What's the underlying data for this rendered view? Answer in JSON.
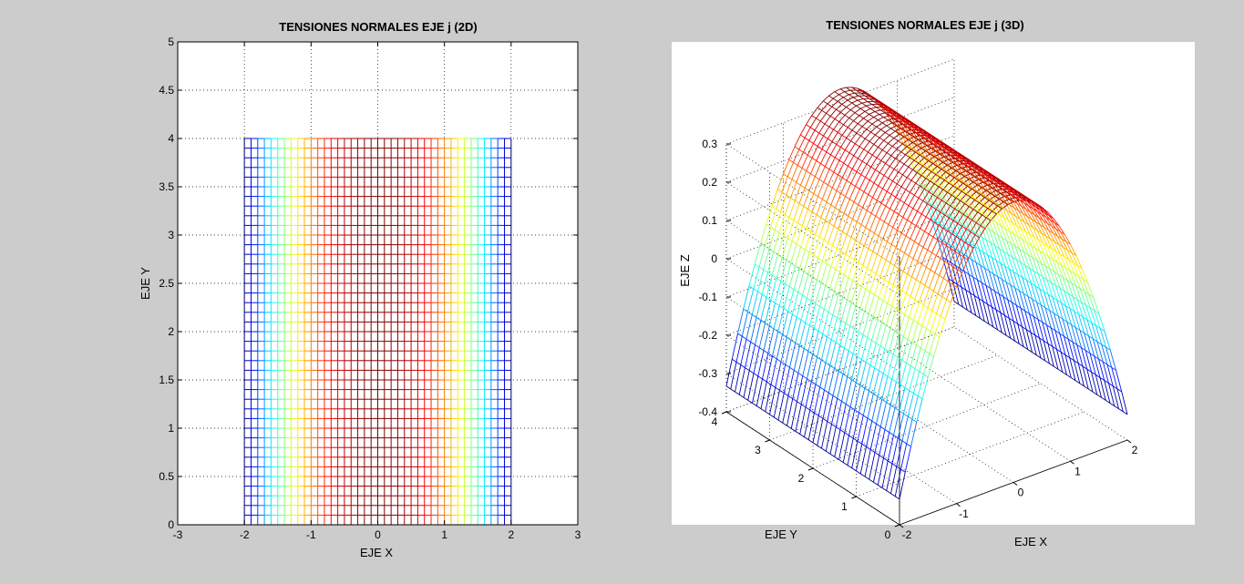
{
  "figure": {
    "background": "#cccccc"
  },
  "chart_data": [
    {
      "type": "mesh-2d",
      "title": "TENSIONES NORMALES EJE j (2D)",
      "xlabel": "EJE X",
      "ylabel": "EJE Y",
      "xlim": [
        -3,
        3
      ],
      "ylim": [
        0,
        5
      ],
      "xticks": [
        "-3",
        "-2",
        "-1",
        "0",
        "1",
        "2",
        "3"
      ],
      "yticks": [
        "0",
        "0.5",
        "1",
        "1.5",
        "2",
        "2.5",
        "3",
        "3.5",
        "4",
        "4.5",
        "5"
      ],
      "grid": true,
      "mesh": {
        "x_range": [
          -2,
          2
        ],
        "y_range": [
          0,
          4
        ],
        "x_lines": 41,
        "y_lines": 41
      },
      "colormap": "jet"
    },
    {
      "type": "mesh-3d",
      "title": "TENSIONES NORMALES EJE j (3D)",
      "xlabel": "EJE X",
      "ylabel": "EJE Y",
      "zlabel": "EJE Z",
      "xlim": [
        -2,
        2
      ],
      "ylim": [
        0,
        4
      ],
      "zlim": [
        -0.4,
        0.3
      ],
      "xticks": [
        "-2",
        "-1",
        "0",
        "1",
        "2"
      ],
      "yticks": [
        "0",
        "1",
        "2",
        "3",
        "4"
      ],
      "zticks": [
        "-0.4",
        "-0.3",
        "-0.2",
        "-0.1",
        "0",
        "0.1",
        "0.2",
        "0.3"
      ],
      "grid": true,
      "mesh": {
        "x_range": [
          -2,
          2
        ],
        "y_range": [
          0,
          4
        ],
        "x_lines": 41,
        "y_lines": 41
      },
      "surface": {
        "z_max": 0.333,
        "z_min": -0.333,
        "shape": "parabolic in x"
      },
      "colormap": "jet"
    }
  ]
}
